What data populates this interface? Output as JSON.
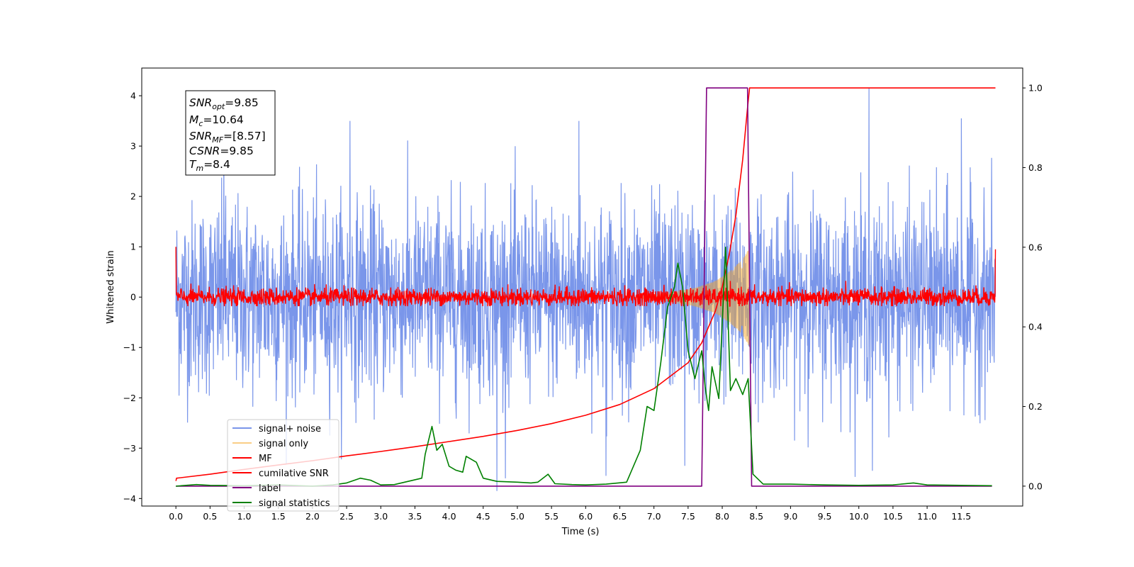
{
  "chart_data": {
    "type": "line",
    "xlabel": "Time (s)",
    "ylabel": "Whitened strain",
    "xlim": [
      -0.5,
      12.4
    ],
    "ylim": [
      -4.15,
      4.55
    ],
    "y2lim": [
      -0.05,
      1.05
    ],
    "x_ticks": [
      0.0,
      0.5,
      1.0,
      1.5,
      2.0,
      2.5,
      3.0,
      3.5,
      4.0,
      4.5,
      5.0,
      5.5,
      6.0,
      6.5,
      7.0,
      7.5,
      8.0,
      8.5,
      9.0,
      9.5,
      10.0,
      10.5,
      11.0,
      11.5
    ],
    "x_tick_labels": [
      "0.0",
      "0.5",
      "1.0",
      "1.5",
      "2.0",
      "2.5",
      "3.0",
      "3.5",
      "4.0",
      "4.5",
      "5.0",
      "5.5",
      "6.0",
      "6.5",
      "7.0",
      "7.5",
      "8.0",
      "8.5",
      "9.0",
      "9.5",
      "10.0",
      "10.5",
      "11.0",
      "11.5"
    ],
    "y_ticks": [
      -4,
      -3,
      -2,
      -1,
      0,
      1,
      2,
      3,
      4
    ],
    "y_tick_labels": [
      "−4",
      "−3",
      "−2",
      "−1",
      "0",
      "1",
      "2",
      "3",
      "4"
    ],
    "y2_ticks": [
      0.0,
      0.2,
      0.4,
      0.6,
      0.8,
      1.0
    ],
    "y2_tick_labels": [
      "0.0",
      "0.2",
      "0.4",
      "0.6",
      "0.8",
      "1.0"
    ],
    "legend_position": "lower-left",
    "info_box": {
      "lines": [
        {
          "main": "SNR",
          "sub": "opt",
          "value": "=9.85"
        },
        {
          "main": "M",
          "sub": "c",
          "value": "=10.64"
        },
        {
          "main": "SNR",
          "sub": "MF",
          "value": "=[8.57]"
        },
        {
          "main": "CSNR",
          "sub": "",
          "value": "=9.85"
        },
        {
          "main": "T",
          "sub": "m",
          "value": "=8.4"
        }
      ]
    },
    "series": [
      {
        "name": "signal+ noise",
        "axis": "left",
        "color": "#4169e1",
        "kind": "noise",
        "approx_std": 0.95,
        "x_range": [
          0.0,
          12.0
        ],
        "notable_peaks": [
          [
            0.7,
            3.3
          ],
          [
            2.55,
            3.5
          ],
          [
            5.9,
            3.5
          ],
          [
            10.15,
            4.15
          ],
          [
            11.5,
            3.55
          ],
          [
            4.7,
            -3.85
          ],
          [
            6.3,
            -3.55
          ],
          [
            10.2,
            -3.45
          ],
          [
            7.45,
            -3.35
          ]
        ]
      },
      {
        "name": "signal only",
        "axis": "left",
        "color": "#f5a623",
        "kind": "chirp",
        "x_range": [
          6.8,
          8.4
        ],
        "envelope": [
          [
            6.8,
            0.02
          ],
          [
            7.2,
            0.08
          ],
          [
            7.6,
            0.18
          ],
          [
            7.9,
            0.32
          ],
          [
            8.1,
            0.5
          ],
          [
            8.3,
            0.75
          ],
          [
            8.4,
            1.0
          ]
        ]
      },
      {
        "name": "MF",
        "axis": "left",
        "color": "#ff0000",
        "kind": "noise",
        "approx_std": 0.09,
        "x_range": [
          0.0,
          12.0
        ],
        "edge_values": [
          [
            0.0,
            1.0
          ],
          [
            12.0,
            0.95
          ]
        ]
      },
      {
        "name": "cumilative SNR",
        "axis": "right",
        "color": "#ff0000",
        "kind": "line",
        "points": [
          [
            0.0,
            0.013
          ],
          [
            0.01,
            0.02
          ],
          [
            0.5,
            0.03
          ],
          [
            1.0,
            0.042
          ],
          [
            1.5,
            0.053
          ],
          [
            2.0,
            0.064
          ],
          [
            2.5,
            0.076
          ],
          [
            3.0,
            0.087
          ],
          [
            3.5,
            0.099
          ],
          [
            4.0,
            0.112
          ],
          [
            4.5,
            0.125
          ],
          [
            5.0,
            0.14
          ],
          [
            5.5,
            0.157
          ],
          [
            6.0,
            0.178
          ],
          [
            6.5,
            0.205
          ],
          [
            7.0,
            0.245
          ],
          [
            7.5,
            0.31
          ],
          [
            7.7,
            0.36
          ],
          [
            7.9,
            0.44
          ],
          [
            8.0,
            0.5
          ],
          [
            8.1,
            0.58
          ],
          [
            8.2,
            0.68
          ],
          [
            8.3,
            0.82
          ],
          [
            8.37,
            0.95
          ],
          [
            8.4,
            1.0
          ],
          [
            12.0,
            1.0
          ]
        ]
      },
      {
        "name": "label",
        "axis": "right",
        "color": "#800080",
        "kind": "line",
        "points": [
          [
            0.0,
            0.0
          ],
          [
            7.7,
            0.0
          ],
          [
            7.77,
            1.0
          ],
          [
            8.37,
            1.0
          ],
          [
            8.43,
            0.0
          ],
          [
            11.95,
            0.0
          ]
        ]
      },
      {
        "name": "signal statistics",
        "axis": "right",
        "color": "#008000",
        "kind": "line",
        "points": [
          [
            0.0,
            0.0
          ],
          [
            0.3,
            0.004
          ],
          [
            0.5,
            0.002
          ],
          [
            1.0,
            0.001
          ],
          [
            1.5,
            0.003
          ],
          [
            2.0,
            0.0
          ],
          [
            2.3,
            0.003
          ],
          [
            2.5,
            0.008
          ],
          [
            2.7,
            0.02
          ],
          [
            2.85,
            0.015
          ],
          [
            3.0,
            0.003
          ],
          [
            3.2,
            0.004
          ],
          [
            3.4,
            0.012
          ],
          [
            3.6,
            0.02
          ],
          [
            3.65,
            0.08
          ],
          [
            3.75,
            0.15
          ],
          [
            3.82,
            0.09
          ],
          [
            3.9,
            0.105
          ],
          [
            4.0,
            0.05
          ],
          [
            4.1,
            0.04
          ],
          [
            4.2,
            0.035
          ],
          [
            4.25,
            0.075
          ],
          [
            4.4,
            0.06
          ],
          [
            4.5,
            0.02
          ],
          [
            4.7,
            0.012
          ],
          [
            5.0,
            0.01
          ],
          [
            5.2,
            0.008
          ],
          [
            5.3,
            0.01
          ],
          [
            5.45,
            0.03
          ],
          [
            5.55,
            0.006
          ],
          [
            5.8,
            0.004
          ],
          [
            6.0,
            0.003
          ],
          [
            6.3,
            0.005
          ],
          [
            6.6,
            0.01
          ],
          [
            6.8,
            0.09
          ],
          [
            6.9,
            0.2
          ],
          [
            7.0,
            0.19
          ],
          [
            7.1,
            0.31
          ],
          [
            7.2,
            0.45
          ],
          [
            7.3,
            0.5
          ],
          [
            7.35,
            0.56
          ],
          [
            7.42,
            0.5
          ],
          [
            7.5,
            0.34
          ],
          [
            7.6,
            0.27
          ],
          [
            7.7,
            0.34
          ],
          [
            7.75,
            0.25
          ],
          [
            7.8,
            0.19
          ],
          [
            7.85,
            0.3
          ],
          [
            7.95,
            0.22
          ],
          [
            8.05,
            0.6
          ],
          [
            8.12,
            0.24
          ],
          [
            8.2,
            0.27
          ],
          [
            8.3,
            0.23
          ],
          [
            8.38,
            0.27
          ],
          [
            8.45,
            0.03
          ],
          [
            8.6,
            0.005
          ],
          [
            9.0,
            0.005
          ],
          [
            9.5,
            0.003
          ],
          [
            10.0,
            0.002
          ],
          [
            10.5,
            0.003
          ],
          [
            10.8,
            0.008
          ],
          [
            11.0,
            0.003
          ],
          [
            11.5,
            0.002
          ],
          [
            11.95,
            0.001
          ]
        ]
      }
    ]
  }
}
